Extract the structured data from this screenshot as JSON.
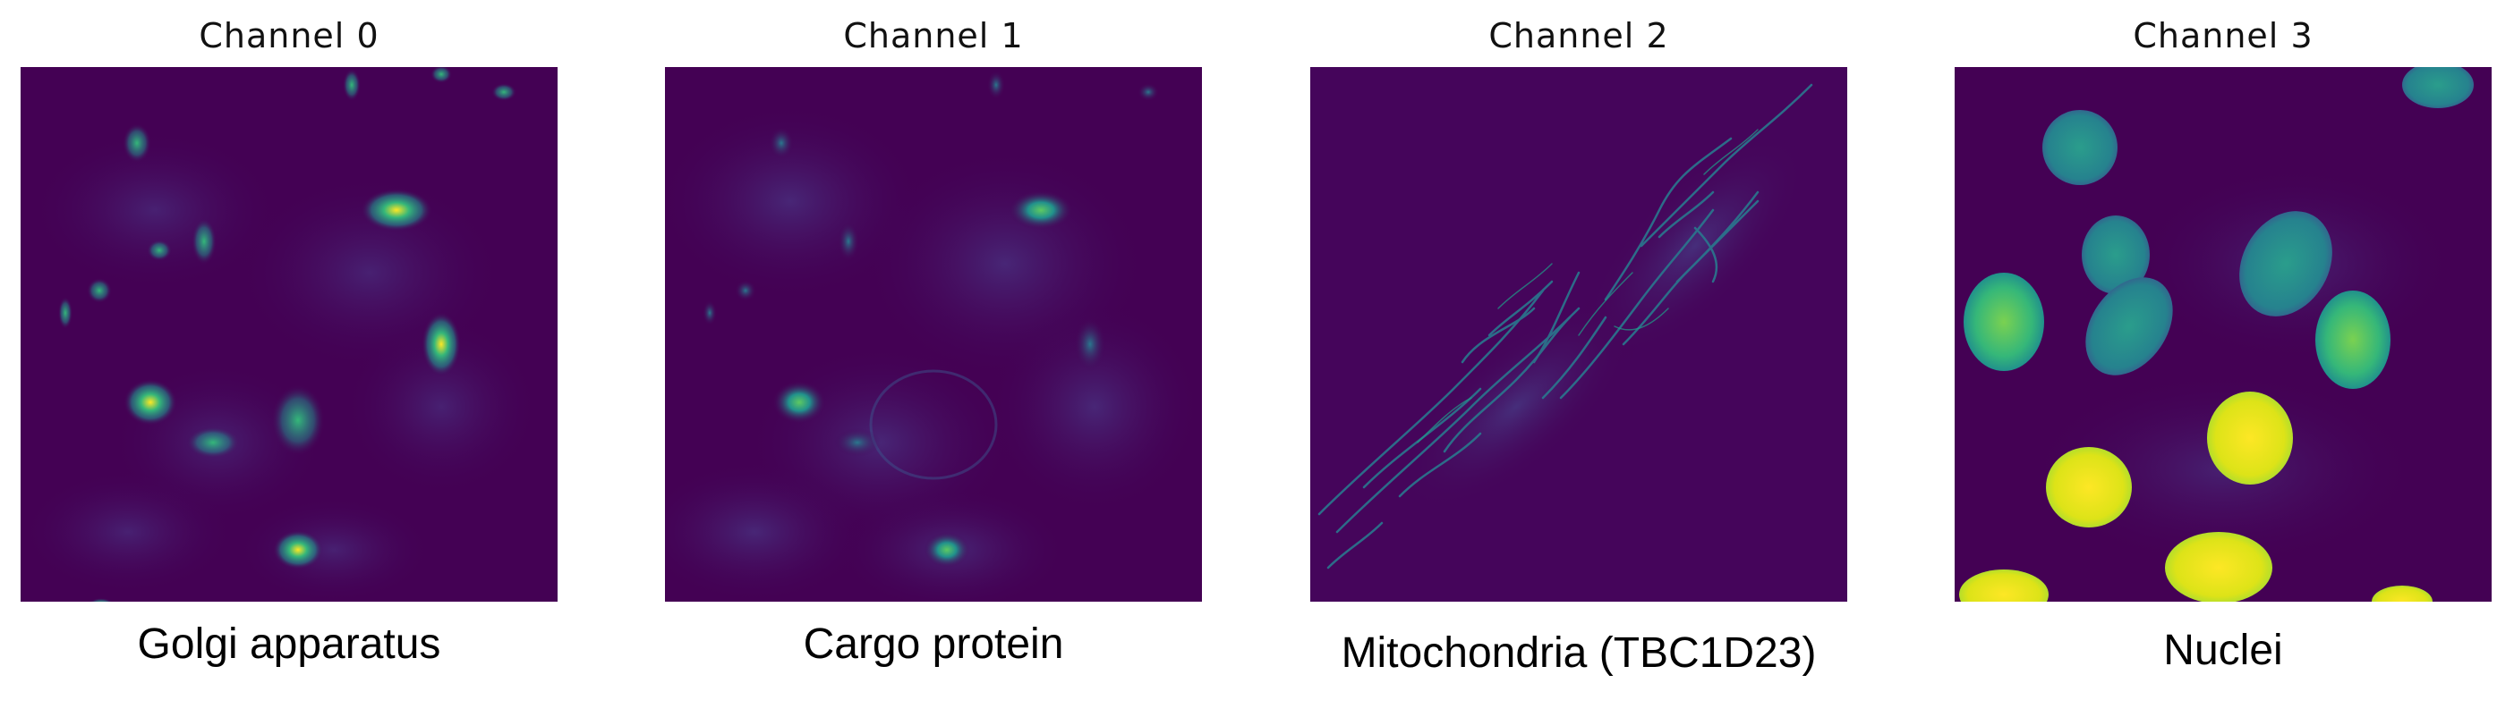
{
  "figure": {
    "panels": [
      {
        "title": "Channel 0",
        "caption": "Golgi apparatus"
      },
      {
        "title": "Channel 1",
        "caption": "Cargo protein"
      },
      {
        "title": "Channel 2",
        "caption": "Mitochondria (TBC1D23)"
      },
      {
        "title": "Channel 3",
        "caption": "Nuclei"
      }
    ],
    "colormap": {
      "low": "#440154",
      "mid": "#21918c",
      "high": "#fde725"
    }
  }
}
